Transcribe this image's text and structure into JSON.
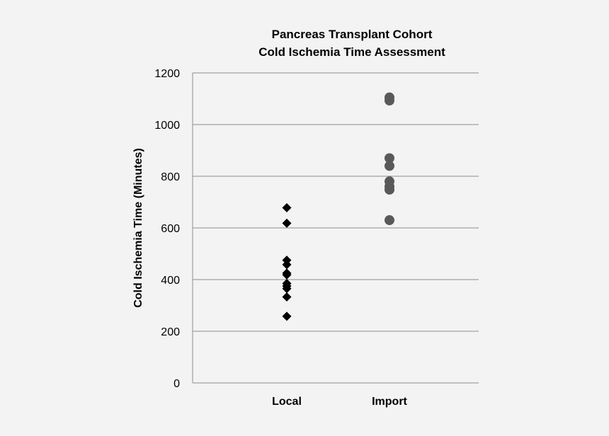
{
  "chart_data": {
    "type": "scatter",
    "title_lines": [
      "Pancreas  Transplant  Cohort",
      "Cold Ischemia Time Assessment"
    ],
    "ylabel": "Cold Ischemia Time (Minutes)",
    "xlabel": "",
    "categories": [
      "Local",
      "Import"
    ],
    "ylim": [
      0,
      1200
    ],
    "yticks": [
      0,
      200,
      400,
      600,
      800,
      1000,
      1200
    ],
    "grid": true,
    "legend": "none",
    "series": [
      {
        "category": "Local",
        "marker": "diamond",
        "color": "#000000",
        "values": [
          678,
          618,
          475,
          458,
          425,
          418,
          385,
          375,
          365,
          333,
          258
        ]
      },
      {
        "category": "Import",
        "marker": "circle",
        "color": "#595959",
        "values": [
          1105,
          1093,
          870,
          840,
          780,
          760,
          748,
          630
        ]
      }
    ]
  }
}
